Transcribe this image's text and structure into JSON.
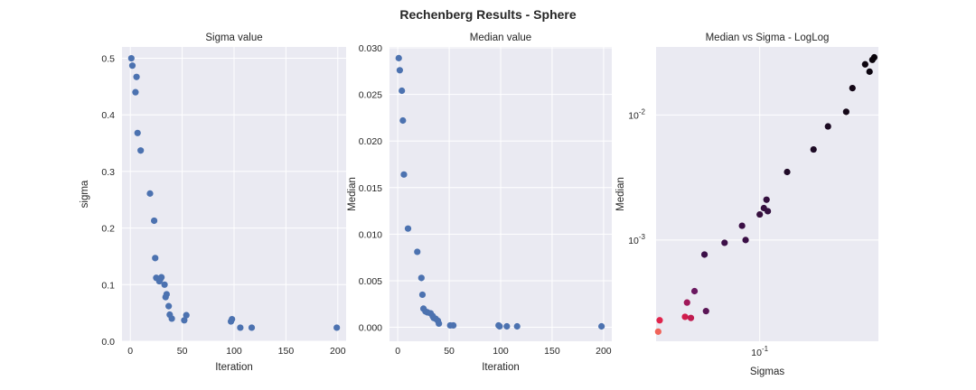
{
  "figure_title": "Rechenberg Results - Sphere",
  "colors": {
    "panel_bg": "#eaeaf2",
    "grid": "#ffffff",
    "point": "#4c72b0"
  },
  "chart_data": [
    {
      "type": "scatter",
      "title": "Sigma value",
      "xlabel": "Iteration",
      "ylabel": "sigma",
      "xlim": [
        -8,
        208
      ],
      "ylim": [
        0,
        0.52
      ],
      "xticks": [
        0,
        50,
        100,
        150,
        200
      ],
      "yticks": [
        0.0,
        0.1,
        0.2,
        0.3,
        0.4,
        0.5
      ],
      "ytick_labels": [
        "0.0",
        "0.1",
        "0.2",
        "0.3",
        "0.4",
        "0.5"
      ],
      "x": [
        1,
        2,
        5,
        6,
        7,
        10,
        19,
        23,
        24,
        25,
        28,
        29,
        30,
        33,
        34,
        35,
        37,
        38,
        40,
        52,
        54,
        97,
        98,
        106,
        117,
        199
      ],
      "y": [
        0.5,
        0.487,
        0.44,
        0.467,
        0.368,
        0.337,
        0.261,
        0.213,
        0.147,
        0.112,
        0.106,
        0.11,
        0.113,
        0.1,
        0.078,
        0.083,
        0.062,
        0.047,
        0.04,
        0.037,
        0.046,
        0.035,
        0.039,
        0.024,
        0.024,
        0.024
      ]
    },
    {
      "type": "scatter",
      "title": "Median value",
      "xlabel": "Iteration",
      "ylabel": "Median",
      "xlim": [
        -8,
        208
      ],
      "ylim": [
        -0.0015,
        0.0301
      ],
      "xticks": [
        0,
        50,
        100,
        150,
        200
      ],
      "yticks": [
        0.0,
        0.005,
        0.01,
        0.015,
        0.02,
        0.025,
        0.03
      ],
      "ytick_labels": [
        "0.000",
        "0.005",
        "0.010",
        "0.015",
        "0.020",
        "0.025",
        "0.030"
      ],
      "x": [
        1,
        2,
        4,
        5,
        6,
        10,
        19,
        23,
        24,
        25,
        27,
        29,
        32,
        34,
        35,
        37,
        39,
        40,
        51,
        54,
        98,
        99,
        106,
        116,
        198
      ],
      "y": [
        0.0289,
        0.0276,
        0.0254,
        0.0222,
        0.0164,
        0.0106,
        0.0081,
        0.0053,
        0.0035,
        0.002,
        0.0017,
        0.0016,
        0.0015,
        0.0012,
        0.001,
        0.0009,
        0.0007,
        0.0004,
        0.0002,
        0.0002,
        0.0002,
        0.0001,
        0.0001,
        0.0001,
        0.0001
      ]
    },
    {
      "type": "scatter",
      "scale": "log-log",
      "title": "Median vs Sigma - LogLog",
      "xlabel": "Sigmas",
      "ylabel": "Median",
      "xlim": [
        0.0233,
        0.53
      ],
      "ylim": [
        0.000155,
        0.035
      ],
      "xticks": [
        0.1
      ],
      "yticks": [
        0.001,
        0.01
      ],
      "x": [
        0.024,
        0.0245,
        0.035,
        0.036,
        0.038,
        0.04,
        0.046,
        0.047,
        0.061,
        0.078,
        0.082,
        0.1,
        0.106,
        0.11,
        0.112,
        0.147,
        0.213,
        0.261,
        0.337,
        0.368,
        0.44,
        0.468,
        0.487,
        0.5
      ],
      "y": [
        0.000185,
        0.000228,
        0.000243,
        0.000316,
        0.000238,
        0.00039,
        0.000765,
        0.00027,
        0.00095,
        0.0013,
        0.001,
        0.0016,
        0.0018,
        0.0021,
        0.0017,
        0.0035,
        0.0053,
        0.0081,
        0.0106,
        0.0164,
        0.0254,
        0.0222,
        0.0276,
        0.0289
      ],
      "colors": [
        "#f0645a",
        "#e0244c",
        "#d01c4c",
        "#a0195a",
        "#c01c50",
        "#6a1860",
        "#3c1048",
        "#5a1556",
        "#3d0f48",
        "#3a0e45",
        "#3a0e45",
        "#36103e",
        "#360f40",
        "#340f3e",
        "#341040",
        "#200a28",
        "#1d0a25",
        "#1b0a22",
        "#150818",
        "#130616",
        "#0d0510",
        "#0c0510",
        "#0a040c",
        "#08030a"
      ]
    }
  ]
}
